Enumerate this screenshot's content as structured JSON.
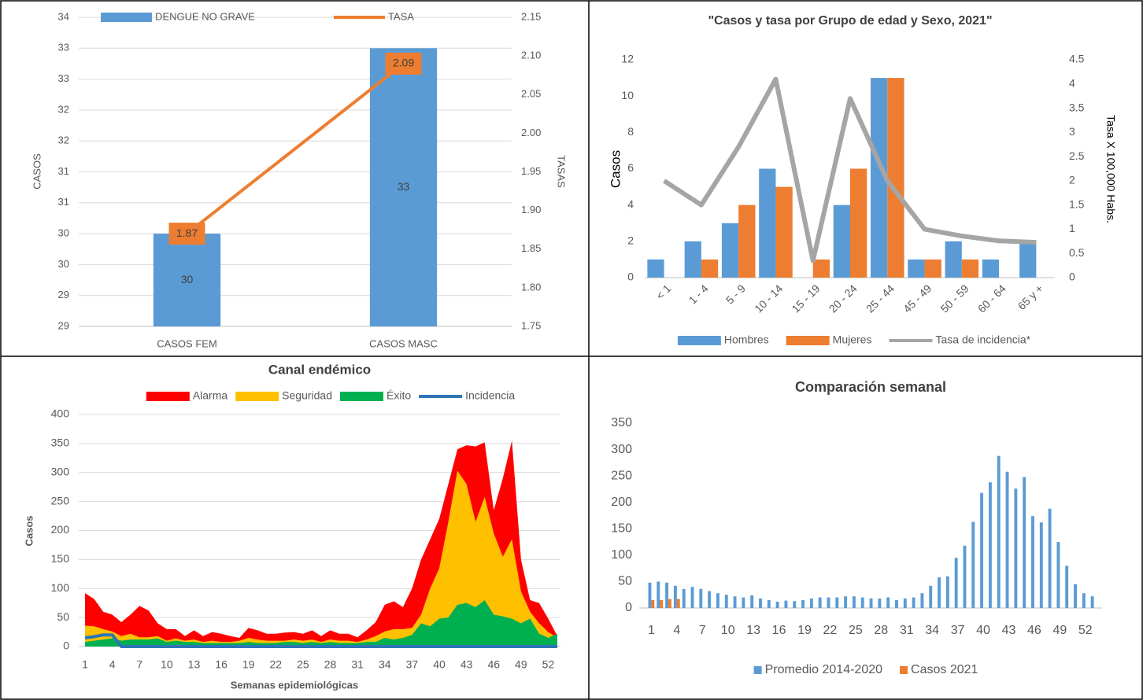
{
  "chart_data": [
    {
      "type": "bar",
      "categories": [
        "CASOS FEM",
        "CASOS MASC"
      ],
      "series": [
        {
          "name": "DENGUE NO GRAVE",
          "color": "#5b9bd5",
          "values": [
            30,
            33
          ]
        },
        {
          "name": "TASA",
          "color": "#ed7d31",
          "kind": "line",
          "axis": "y2",
          "values": [
            1.87,
            2.09
          ]
        }
      ],
      "ylabel": "CASOS",
      "y2label": "TASAS",
      "ylim": [
        28.5,
        33.5
      ],
      "yticks": [
        {
          "value": 28.5,
          "label": "29"
        },
        29,
        {
          "value": 29.5,
          "label": "30"
        },
        30,
        {
          "value": 30.5,
          "label": "31"
        },
        31,
        {
          "value": 31.5,
          "label": "32"
        },
        32,
        {
          "value": 32.5,
          "label": "33"
        },
        33,
        {
          "value": 33.5,
          "label": "34"
        }
      ],
      "y2lim": [
        1.75,
        2.15
      ],
      "y2ticks": [
        1.75,
        {
          "value": 1.8,
          "label": "1.80"
        },
        1.85,
        {
          "value": 1.9,
          "label": "1.90"
        },
        1.95,
        {
          "value": 2,
          "label": "2.00"
        },
        2.05,
        {
          "value": 2.1,
          "label": "2.10"
        },
        2.15
      ],
      "grid": true,
      "legend": "top",
      "data_labels": true
    },
    {
      "type": "bar",
      "title": "\"Casos y tasa por Grupo de edad y Sexo, 2021\"",
      "categories": [
        "< 1",
        "1 - 4",
        "5 - 9",
        "10 - 14",
        "15 - 19",
        "20 - 24",
        "25 - 44",
        "45 - 49",
        "50 - 59",
        "60 - 64",
        "65 y +"
      ],
      "series": [
        {
          "name": "Hombres",
          "color": "#5b9bd5",
          "values": [
            1,
            2,
            3,
            6,
            0,
            4,
            11,
            1,
            2,
            1,
            2
          ]
        },
        {
          "name": "Mujeres",
          "color": "#ed7d31",
          "values": [
            0,
            1,
            4,
            5,
            1,
            6,
            11,
            1,
            1,
            0,
            0
          ]
        },
        {
          "name": "Tasa de incidencia*",
          "color": "#a5a5a5",
          "kind": "line",
          "axis": "y2",
          "values": [
            2.0,
            1.5,
            2.7,
            4.1,
            0.35,
            3.7,
            2.0,
            1.0,
            0.86,
            0.76,
            0.73
          ]
        }
      ],
      "ylabel": "Casos",
      "y2label": "Tasa X 100,000 Habs.",
      "ylim": [
        0,
        12
      ],
      "yticks": [
        0,
        2,
        4,
        6,
        8,
        10,
        12
      ],
      "y2lim": [
        0,
        4.5
      ],
      "y2ticks": [
        0,
        0.5,
        1,
        1.5,
        2,
        2.5,
        3,
        3.5,
        4,
        4.5
      ],
      "grid": false,
      "legend": "bottom"
    },
    {
      "type": "area",
      "title": "Canal endémico",
      "x": [
        1,
        2,
        3,
        4,
        5,
        6,
        7,
        8,
        9,
        10,
        11,
        12,
        13,
        14,
        15,
        16,
        17,
        18,
        19,
        20,
        21,
        22,
        23,
        24,
        25,
        26,
        27,
        28,
        29,
        30,
        31,
        32,
        33,
        34,
        35,
        36,
        37,
        38,
        39,
        40,
        41,
        42,
        43,
        44,
        45,
        46,
        47,
        48,
        49,
        50,
        51,
        52,
        53
      ],
      "series": [
        {
          "name": "Alarma",
          "color": "#ff0000",
          "values": [
            92,
            82,
            60,
            55,
            42,
            55,
            70,
            62,
            40,
            30,
            30,
            18,
            28,
            18,
            25,
            22,
            18,
            15,
            32,
            28,
            22,
            22,
            24,
            25,
            22,
            28,
            18,
            28,
            22,
            22,
            16,
            28,
            42,
            72,
            78,
            68,
            100,
            150,
            185,
            220,
            280,
            340,
            347,
            345,
            352,
            235,
            290,
            355,
            150,
            80,
            75,
            48,
            18
          ]
        },
        {
          "name": "Seguridad",
          "color": "#ffc000",
          "values": [
            36,
            35,
            30,
            26,
            18,
            22,
            16,
            16,
            18,
            10,
            14,
            10,
            12,
            8,
            10,
            8,
            8,
            10,
            15,
            12,
            10,
            10,
            10,
            12,
            10,
            12,
            8,
            12,
            10,
            10,
            8,
            12,
            18,
            26,
            30,
            30,
            32,
            55,
            100,
            135,
            215,
            303,
            280,
            215,
            258,
            195,
            155,
            185,
            95,
            60,
            40,
            25,
            15
          ]
        },
        {
          "name": "Éxito",
          "color": "#00b050",
          "values": [
            8,
            10,
            12,
            14,
            10,
            12,
            12,
            12,
            14,
            8,
            10,
            8,
            8,
            6,
            6,
            6,
            6,
            6,
            8,
            6,
            6,
            6,
            8,
            8,
            6,
            8,
            6,
            8,
            6,
            6,
            6,
            8,
            8,
            15,
            12,
            15,
            20,
            40,
            35,
            48,
            50,
            72,
            75,
            68,
            80,
            55,
            52,
            48,
            40,
            48,
            22,
            15,
            22
          ]
        },
        {
          "name": "Incidencia",
          "color": "#2e75b6",
          "kind": "line",
          "values": [
            15,
            17,
            20,
            20,
            0,
            0,
            0,
            0,
            0,
            0,
            0,
            0,
            0,
            0,
            0,
            0,
            0,
            0,
            0,
            0,
            0,
            0,
            0,
            0,
            0,
            0,
            0,
            0,
            0,
            0,
            0,
            0,
            0,
            0,
            0,
            0,
            0,
            0,
            0,
            0,
            0,
            0,
            0,
            0,
            0,
            0,
            0,
            0,
            0,
            0,
            0,
            0,
            0
          ]
        }
      ],
      "xlabel": "Semanas epidemiológicas",
      "ylabel": "Casos",
      "xlim": [
        1,
        53
      ],
      "xticks": [
        1,
        4,
        7,
        10,
        13,
        16,
        19,
        22,
        25,
        28,
        31,
        34,
        37,
        40,
        43,
        46,
        49,
        52
      ],
      "ylim": [
        0,
        400
      ],
      "yticks": [
        0,
        50,
        100,
        150,
        200,
        250,
        300,
        350,
        400
      ],
      "grid": true,
      "legend": "top"
    },
    {
      "type": "bar",
      "title": "Comparación semanal",
      "x": [
        1,
        2,
        3,
        4,
        5,
        6,
        7,
        8,
        9,
        10,
        11,
        12,
        13,
        14,
        15,
        16,
        17,
        18,
        19,
        20,
        21,
        22,
        23,
        24,
        25,
        26,
        27,
        28,
        29,
        30,
        31,
        32,
        33,
        34,
        35,
        36,
        37,
        38,
        39,
        40,
        41,
        42,
        43,
        44,
        45,
        46,
        47,
        48,
        49,
        50,
        51,
        52,
        53
      ],
      "series": [
        {
          "name": "Promedio 2014-2020",
          "color": "#5b9bd5",
          "values": [
            48,
            50,
            48,
            42,
            36,
            40,
            36,
            32,
            28,
            25,
            22,
            20,
            24,
            18,
            15,
            12,
            14,
            13,
            15,
            18,
            20,
            20,
            20,
            22,
            22,
            20,
            18,
            18,
            20,
            15,
            18,
            20,
            28,
            42,
            58,
            60,
            95,
            118,
            163,
            218,
            238,
            288,
            258,
            226,
            248,
            174,
            162,
            188,
            125,
            80,
            45,
            28,
            22
          ]
        },
        {
          "name": "Casos 2021",
          "color": "#ed7d31",
          "values": [
            15,
            15,
            17,
            17,
            null,
            null,
            null,
            null,
            null,
            null,
            null,
            null,
            null,
            null,
            null,
            null,
            null,
            null,
            null,
            null,
            null,
            null,
            null,
            null,
            null,
            null,
            null,
            null,
            null,
            null,
            null,
            null,
            null,
            null,
            null,
            null,
            null,
            null,
            null,
            null,
            null,
            null,
            null,
            null,
            null,
            null,
            null,
            null,
            null,
            null,
            null,
            null,
            null
          ]
        }
      ],
      "xlim": [
        0.5,
        53.5
      ],
      "xticks": [
        1,
        4,
        7,
        10,
        13,
        16,
        19,
        22,
        25,
        28,
        31,
        34,
        37,
        40,
        43,
        46,
        49,
        52
      ],
      "ylim": [
        0,
        350
      ],
      "yticks": [
        0,
        50,
        100,
        150,
        200,
        250,
        300,
        350
      ],
      "grid": false,
      "legend": "bottom"
    }
  ]
}
